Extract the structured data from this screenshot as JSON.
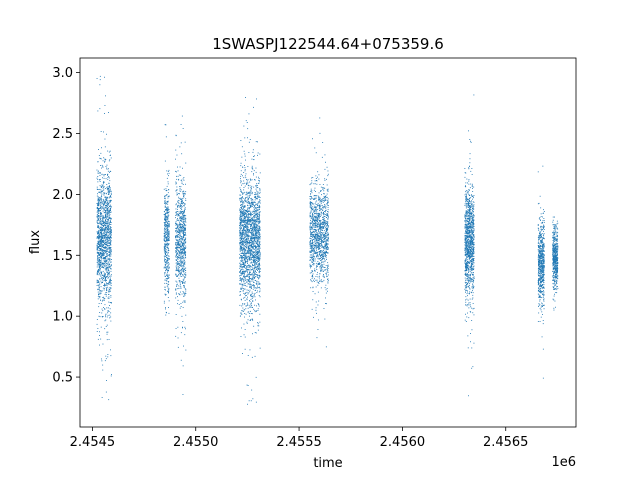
{
  "chart_data": {
    "type": "scatter",
    "title": "1SWASPJ122544.64+075359.6",
    "xlabel": "time",
    "ylabel": "flux",
    "x_offset_label": "1e6",
    "xlim": [
      2454440,
      2456840
    ],
    "ylim": [
      0.09,
      3.12
    ],
    "x_ticks": [
      2454500,
      2455000,
      2455500,
      2456000,
      2456500
    ],
    "x_tick_labels": [
      "2.4545",
      "2.4550",
      "2.4555",
      "2.4560",
      "2.4565"
    ],
    "y_ticks": [
      0.5,
      1.0,
      1.5,
      2.0,
      2.5,
      3.0
    ],
    "y_tick_labels": [
      "0.5",
      "1.0",
      "1.5",
      "2.0",
      "2.5",
      "3.0"
    ],
    "grid": false,
    "series": [
      {
        "color": "#1f77b4",
        "clusters": [
          {
            "x_start": 2454520,
            "x_end": 2454590,
            "n": 1500,
            "center": 1.65,
            "spread": 0.28,
            "min": 0.3,
            "max": 3.0
          },
          {
            "x_start": 2454845,
            "x_end": 2454870,
            "n": 450,
            "center": 1.65,
            "spread": 0.22,
            "min": 1.0,
            "max": 2.6
          },
          {
            "x_start": 2454900,
            "x_end": 2454950,
            "n": 800,
            "center": 1.62,
            "spread": 0.25,
            "min": 0.3,
            "max": 2.85
          },
          {
            "x_start": 2455210,
            "x_end": 2455310,
            "n": 2000,
            "center": 1.62,
            "spread": 0.25,
            "min": 0.25,
            "max": 2.85
          },
          {
            "x_start": 2455550,
            "x_end": 2455640,
            "n": 1200,
            "center": 1.68,
            "spread": 0.2,
            "min": 0.5,
            "max": 2.65
          },
          {
            "x_start": 2456300,
            "x_end": 2456345,
            "n": 1100,
            "center": 1.6,
            "spread": 0.22,
            "min": 0.3,
            "max": 2.85
          },
          {
            "x_start": 2456655,
            "x_end": 2456685,
            "n": 600,
            "center": 1.45,
            "spread": 0.17,
            "min": 0.2,
            "max": 3.0
          },
          {
            "x_start": 2456725,
            "x_end": 2456750,
            "n": 500,
            "center": 1.48,
            "spread": 0.13,
            "min": 1.05,
            "max": 1.82
          }
        ]
      }
    ]
  }
}
